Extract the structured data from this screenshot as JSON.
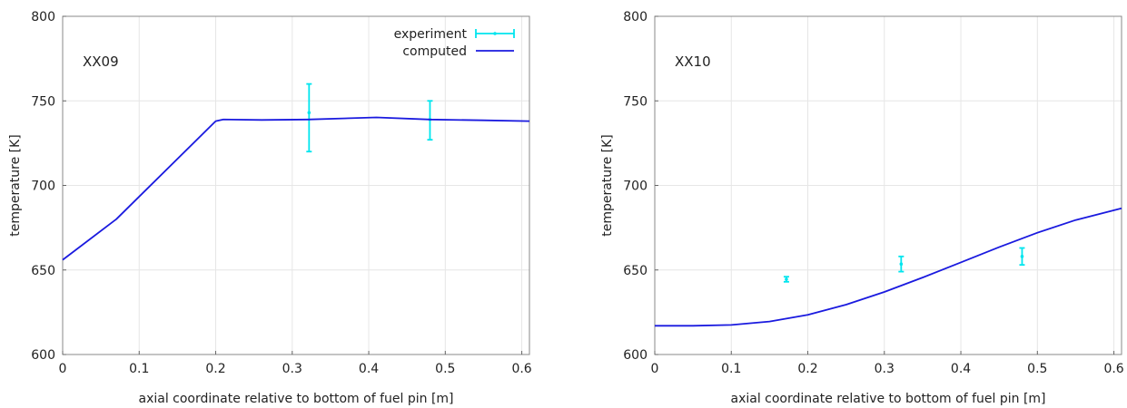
{
  "chart_data": [
    {
      "type": "line",
      "panel_label": "XX09",
      "xlabel": "axial coordinate relative to bottom of fuel pin [m]",
      "ylabel": "temperature [K]",
      "xlim": [
        0,
        0.61
      ],
      "ylim": [
        600,
        800
      ],
      "xticks": [
        0,
        0.1,
        0.2,
        0.3,
        0.4,
        0.5,
        0.6
      ],
      "yticks": [
        600,
        650,
        700,
        750,
        800
      ],
      "grid": true,
      "legend_position": "top-right",
      "series": [
        {
          "name": "experiment",
          "kind": "errorbar",
          "color": "#00e5ee",
          "points": [
            {
              "x": 0.322,
              "y": 743,
              "ylow": 720,
              "yhigh": 760
            },
            {
              "x": 0.48,
              "y": 739,
              "ylow": 727,
              "yhigh": 750
            }
          ]
        },
        {
          "name": "computed",
          "kind": "line",
          "color": "#1a1adf",
          "x": [
            0,
            0.07,
            0.2,
            0.21,
            0.26,
            0.32,
            0.41,
            0.48,
            0.55,
            0.61
          ],
          "y": [
            656,
            680,
            738,
            739,
            738.7,
            739,
            740.2,
            739,
            738.5,
            738
          ]
        }
      ]
    },
    {
      "type": "line",
      "panel_label": "XX10",
      "xlabel": "axial coordinate relative to bottom of fuel pin [m]",
      "ylabel": "temperature [K]",
      "xlim": [
        0,
        0.61
      ],
      "ylim": [
        600,
        800
      ],
      "xticks": [
        0,
        0.1,
        0.2,
        0.3,
        0.4,
        0.5,
        0.6
      ],
      "yticks": [
        600,
        650,
        700,
        750,
        800
      ],
      "grid": true,
      "series": [
        {
          "name": "experiment",
          "kind": "errorbar",
          "color": "#00e5ee",
          "points": [
            {
              "x": 0.172,
              "y": 644.5,
              "ylow": 643,
              "yhigh": 646
            },
            {
              "x": 0.322,
              "y": 653.5,
              "ylow": 649,
              "yhigh": 658
            },
            {
              "x": 0.48,
              "y": 658,
              "ylow": 653,
              "yhigh": 663
            }
          ]
        },
        {
          "name": "computed",
          "kind": "line",
          "color": "#1a1adf",
          "x": [
            0,
            0.05,
            0.1,
            0.15,
            0.2,
            0.25,
            0.3,
            0.35,
            0.4,
            0.45,
            0.5,
            0.55,
            0.61
          ],
          "y": [
            617,
            617,
            617.5,
            619.5,
            623.5,
            629.5,
            637,
            645.5,
            654.5,
            663.5,
            672,
            679.5,
            686.5
          ]
        }
      ]
    }
  ]
}
